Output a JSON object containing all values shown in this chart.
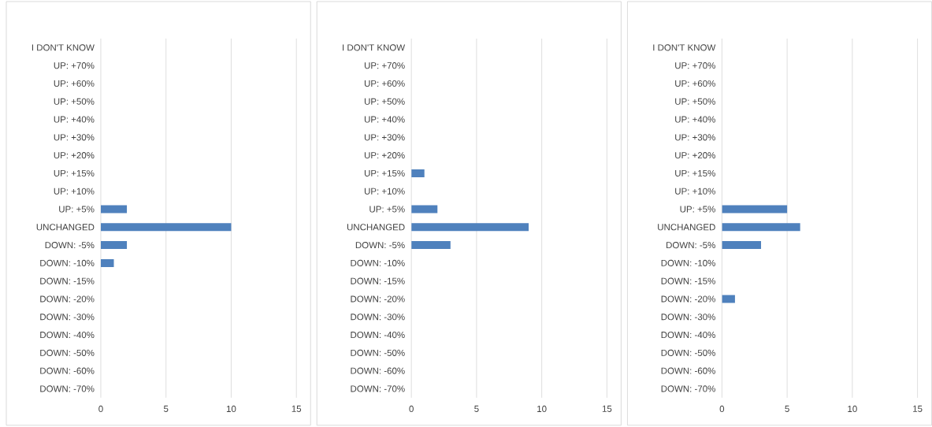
{
  "chart_data": [
    {
      "type": "bar",
      "orientation": "horizontal",
      "categories": [
        "I DON'T KNOW",
        "UP: +70%",
        "UP: +60%",
        "UP: +50%",
        "UP: +40%",
        "UP: +30%",
        "UP: +20%",
        "UP: +15%",
        "UP: +10%",
        "UP: +5%",
        "UNCHANGED",
        "DOWN: -5%",
        "DOWN: -10%",
        "DOWN: -15%",
        "DOWN: -20%",
        "DOWN: -30%",
        "DOWN: -40%",
        "DOWN: -50%",
        "DOWN: -60%",
        "DOWN: -70%"
      ],
      "values": [
        0,
        0,
        0,
        0,
        0,
        0,
        0,
        0,
        0,
        2,
        10,
        2,
        1,
        0,
        0,
        0,
        0,
        0,
        0,
        0
      ],
      "color": "#4f81bd",
      "xlim": [
        0,
        15
      ],
      "xticks": [
        0,
        5,
        10,
        15
      ],
      "grid": "x"
    },
    {
      "type": "bar",
      "orientation": "horizontal",
      "categories": [
        "I DON'T KNOW",
        "UP: +70%",
        "UP: +60%",
        "UP: +50%",
        "UP: +40%",
        "UP: +30%",
        "UP: +20%",
        "UP: +15%",
        "UP: +10%",
        "UP: +5%",
        "UNCHANGED",
        "DOWN: -5%",
        "DOWN: -10%",
        "DOWN: -15%",
        "DOWN: -20%",
        "DOWN: -30%",
        "DOWN: -40%",
        "DOWN: -50%",
        "DOWN: -60%",
        "DOWN: -70%"
      ],
      "values": [
        0,
        0,
        0,
        0,
        0,
        0,
        0,
        1,
        0,
        2,
        9,
        3,
        0,
        0,
        0,
        0,
        0,
        0,
        0,
        0
      ],
      "color": "#4f81bd",
      "xlim": [
        0,
        15
      ],
      "xticks": [
        0,
        5,
        10,
        15
      ],
      "grid": "x"
    },
    {
      "type": "bar",
      "orientation": "horizontal",
      "categories": [
        "I DON'T KNOW",
        "UP: +70%",
        "UP: +60%",
        "UP: +50%",
        "UP: +40%",
        "UP: +30%",
        "UP: +20%",
        "UP: +15%",
        "UP: +10%",
        "UP: +5%",
        "UNCHANGED",
        "DOWN: -5%",
        "DOWN: -10%",
        "DOWN: -15%",
        "DOWN: -20%",
        "DOWN: -30%",
        "DOWN: -40%",
        "DOWN: -50%",
        "DOWN: -60%",
        "DOWN: -70%"
      ],
      "values": [
        0,
        0,
        0,
        0,
        0,
        0,
        0,
        0,
        0,
        5,
        6,
        3,
        0,
        0,
        1,
        0,
        0,
        0,
        0,
        0
      ],
      "color": "#4f81bd",
      "xlim": [
        0,
        15
      ],
      "xticks": [
        0,
        5,
        10,
        15
      ],
      "grid": "x"
    }
  ]
}
